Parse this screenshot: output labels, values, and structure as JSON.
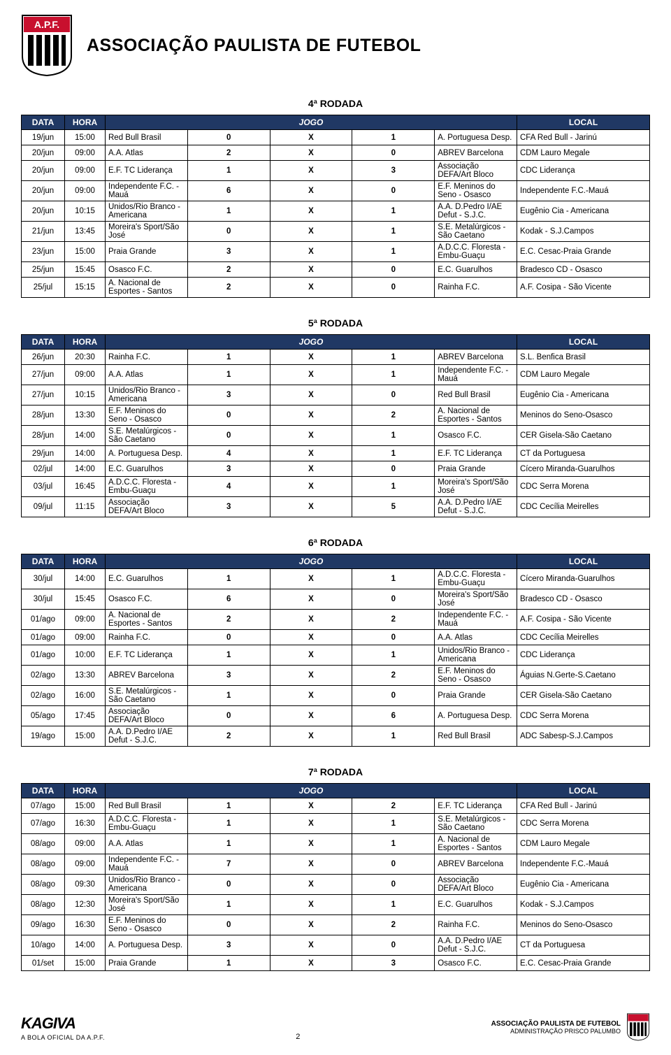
{
  "header": {
    "org_name": "ASSOCIAÇÃO PAULISTA DE FUTEBOL"
  },
  "columns": {
    "data": "DATA",
    "hora": "HORA",
    "jogo": "JOGO",
    "local": "LOCAL"
  },
  "rounds": [
    {
      "title": "4ª RODADA",
      "matches": [
        {
          "data": "19/jun",
          "hora": "15:00",
          "t1": "Red Bull Brasil",
          "s1": "0",
          "x": "X",
          "s2": "1",
          "t2": "A. Portuguesa Desp.",
          "local": "CFA Red Bull - Jarinú"
        },
        {
          "data": "20/jun",
          "hora": "09:00",
          "t1": "A.A. Atlas",
          "s1": "2",
          "x": "X",
          "s2": "0",
          "t2": "ABREV Barcelona",
          "local": "CDM Lauro Megale"
        },
        {
          "data": "20/jun",
          "hora": "09:00",
          "t1": "E.F. TC Liderança",
          "s1": "1",
          "x": "X",
          "s2": "3",
          "t2": "Associação DEFA/Art Bloco",
          "local": "CDC Liderança"
        },
        {
          "data": "20/jun",
          "hora": "09:00",
          "t1": "Independente F.C. - Mauá",
          "s1": "6",
          "x": "X",
          "s2": "0",
          "t2": "E.F. Meninos do Seno - Osasco",
          "local": "Independente F.C.-Mauá"
        },
        {
          "data": "20/jun",
          "hora": "10:15",
          "t1": "Unidos/Rio Branco - Americana",
          "s1": "1",
          "x": "X",
          "s2": "1",
          "t2": "A.A. D.Pedro I/AE Defut - S.J.C.",
          "local": "Eugênio Cia - Americana"
        },
        {
          "data": "21/jun",
          "hora": "13:45",
          "t1": "Moreira's Sport/São José",
          "s1": "0",
          "x": "X",
          "s2": "1",
          "t2": "S.E. Metalúrgicos - São Caetano",
          "local": "Kodak - S.J.Campos"
        },
        {
          "data": "23/jun",
          "hora": "15:00",
          "t1": "Praia Grande",
          "s1": "3",
          "x": "X",
          "s2": "1",
          "t2": "A.D.C.C. Floresta - Embu-Guaçu",
          "local": "E.C. Cesac-Praia Grande"
        },
        {
          "data": "25/jun",
          "hora": "15:45",
          "t1": "Osasco F.C.",
          "s1": "2",
          "x": "X",
          "s2": "0",
          "t2": "E.C. Guarulhos",
          "local": "Bradesco CD - Osasco"
        },
        {
          "data": "25/jul",
          "hora": "15:15",
          "t1": "A. Nacional de Esportes - Santos",
          "s1": "2",
          "x": "X",
          "s2": "0",
          "t2": "Rainha F.C.",
          "local": "A.F. Cosipa - São Vicente"
        }
      ]
    },
    {
      "title": "5ª RODADA",
      "matches": [
        {
          "data": "26/jun",
          "hora": "20:30",
          "t1": "Rainha F.C.",
          "s1": "1",
          "x": "X",
          "s2": "1",
          "t2": "ABREV Barcelona",
          "local": "S.L. Benfica Brasil"
        },
        {
          "data": "27/jun",
          "hora": "09:00",
          "t1": "A.A. Atlas",
          "s1": "1",
          "x": "X",
          "s2": "1",
          "t2": "Independente F.C. - Mauá",
          "local": "CDM Lauro Megale"
        },
        {
          "data": "27/jun",
          "hora": "10:15",
          "t1": "Unidos/Rio Branco - Americana",
          "s1": "3",
          "x": "X",
          "s2": "0",
          "t2": "Red Bull Brasil",
          "local": "Eugênio Cia - Americana"
        },
        {
          "data": "28/jun",
          "hora": "13:30",
          "t1": "E.F. Meninos do Seno - Osasco",
          "s1": "0",
          "x": "X",
          "s2": "2",
          "t2": "A. Nacional de Esportes - Santos",
          "local": "Meninos do Seno-Osasco"
        },
        {
          "data": "28/jun",
          "hora": "14:00",
          "t1": "S.E. Metalúrgicos - São Caetano",
          "s1": "0",
          "x": "X",
          "s2": "1",
          "t2": "Osasco F.C.",
          "local": "CER Gisela-São Caetano"
        },
        {
          "data": "29/jun",
          "hora": "14:00",
          "t1": "A. Portuguesa Desp.",
          "s1": "4",
          "x": "X",
          "s2": "1",
          "t2": "E.F. TC Liderança",
          "local": "CT da Portuguesa"
        },
        {
          "data": "02/jul",
          "hora": "14:00",
          "t1": "E.C. Guarulhos",
          "s1": "3",
          "x": "X",
          "s2": "0",
          "t2": "Praia Grande",
          "local": "Cícero Miranda-Guarulhos"
        },
        {
          "data": "03/jul",
          "hora": "16:45",
          "t1": "A.D.C.C. Floresta - Embu-Guaçu",
          "s1": "4",
          "x": "X",
          "s2": "1",
          "t2": "Moreira's Sport/São José",
          "local": "CDC Serra Morena"
        },
        {
          "data": "09/jul",
          "hora": "11:15",
          "t1": "Associação DEFA/Art Bloco",
          "s1": "3",
          "x": "X",
          "s2": "5",
          "t2": "A.A. D.Pedro I/AE Defut - S.J.C.",
          "local": "CDC Cecília Meirelles"
        }
      ]
    },
    {
      "title": "6ª RODADA",
      "matches": [
        {
          "data": "30/jul",
          "hora": "14:00",
          "t1": "E.C. Guarulhos",
          "s1": "1",
          "x": "X",
          "s2": "1",
          "t2": "A.D.C.C. Floresta - Embu-Guaçu",
          "local": "Cícero Miranda-Guarulhos"
        },
        {
          "data": "30/jul",
          "hora": "15:45",
          "t1": "Osasco F.C.",
          "s1": "6",
          "x": "X",
          "s2": "0",
          "t2": "Moreira's Sport/São José",
          "local": "Bradesco CD - Osasco"
        },
        {
          "data": "01/ago",
          "hora": "09:00",
          "t1": "A. Nacional de Esportes - Santos",
          "s1": "2",
          "x": "X",
          "s2": "2",
          "t2": "Independente F.C. - Mauá",
          "local": "A.F. Cosipa - São Vicente"
        },
        {
          "data": "01/ago",
          "hora": "09:00",
          "t1": "Rainha F.C.",
          "s1": "0",
          "x": "X",
          "s2": "0",
          "t2": "A.A. Atlas",
          "local": "CDC Cecília Meirelles"
        },
        {
          "data": "01/ago",
          "hora": "10:00",
          "t1": "E.F. TC Liderança",
          "s1": "1",
          "x": "X",
          "s2": "1",
          "t2": "Unidos/Rio Branco - Americana",
          "local": "CDC Liderança"
        },
        {
          "data": "02/ago",
          "hora": "13:30",
          "t1": "ABREV Barcelona",
          "s1": "3",
          "x": "X",
          "s2": "2",
          "t2": "E.F. Meninos do Seno - Osasco",
          "local": "Águias N.Gerte-S.Caetano"
        },
        {
          "data": "02/ago",
          "hora": "16:00",
          "t1": "S.E. Metalúrgicos - São Caetano",
          "s1": "1",
          "x": "X",
          "s2": "0",
          "t2": "Praia Grande",
          "local": "CER Gisela-São Caetano"
        },
        {
          "data": "05/ago",
          "hora": "17:45",
          "t1": "Associação DEFA/Art Bloco",
          "s1": "0",
          "x": "X",
          "s2": "6",
          "t2": "A. Portuguesa Desp.",
          "local": "CDC Serra Morena"
        },
        {
          "data": "19/ago",
          "hora": "15:00",
          "t1": "A.A. D.Pedro I/AE Defut - S.J.C.",
          "s1": "2",
          "x": "X",
          "s2": "1",
          "t2": "Red Bull Brasil",
          "local": "ADC Sabesp-S.J.Campos"
        }
      ]
    },
    {
      "title": "7ª RODADA",
      "matches": [
        {
          "data": "07/ago",
          "hora": "15:00",
          "t1": "Red Bull Brasil",
          "s1": "1",
          "x": "X",
          "s2": "2",
          "t2": "E.F. TC Liderança",
          "local": "CFA Red Bull - Jarinú"
        },
        {
          "data": "07/ago",
          "hora": "16:30",
          "t1": "A.D.C.C. Floresta - Embu-Guaçu",
          "s1": "1",
          "x": "X",
          "s2": "1",
          "t2": "S.E. Metalúrgicos - São Caetano",
          "local": "CDC Serra Morena"
        },
        {
          "data": "08/ago",
          "hora": "09:00",
          "t1": "A.A. Atlas",
          "s1": "1",
          "x": "X",
          "s2": "1",
          "t2": "A. Nacional de Esportes - Santos",
          "local": "CDM Lauro Megale"
        },
        {
          "data": "08/ago",
          "hora": "09:00",
          "t1": "Independente F.C. - Mauá",
          "s1": "7",
          "x": "X",
          "s2": "0",
          "t2": "ABREV Barcelona",
          "local": "Independente F.C.-Mauá"
        },
        {
          "data": "08/ago",
          "hora": "09:30",
          "t1": "Unidos/Rio Branco - Americana",
          "s1": "0",
          "x": "X",
          "s2": "0",
          "t2": "Associação DEFA/Art Bloco",
          "local": "Eugênio Cia - Americana"
        },
        {
          "data": "08/ago",
          "hora": "12:30",
          "t1": "Moreira's Sport/São José",
          "s1": "1",
          "x": "X",
          "s2": "1",
          "t2": "E.C. Guarulhos",
          "local": "Kodak - S.J.Campos"
        },
        {
          "data": "09/ago",
          "hora": "16:30",
          "t1": "E.F. Meninos do Seno - Osasco",
          "s1": "0",
          "x": "X",
          "s2": "2",
          "t2": "Rainha F.C.",
          "local": "Meninos do Seno-Osasco"
        },
        {
          "data": "10/ago",
          "hora": "14:00",
          "t1": "A. Portuguesa Desp.",
          "s1": "3",
          "x": "X",
          "s2": "0",
          "t2": "A.A. D.Pedro I/AE Defut - S.J.C.",
          "local": "CT da Portuguesa"
        },
        {
          "data": "01/set",
          "hora": "15:00",
          "t1": "Praia Grande",
          "s1": "1",
          "x": "X",
          "s2": "3",
          "t2": "Osasco F.C.",
          "local": "E.C. Cesac-Praia Grande"
        }
      ]
    }
  ],
  "footer": {
    "sponsor_name": "KAGIVA",
    "sponsor_sub": "A BOLA OFICIAL DA A.P.F.",
    "page_number": "2",
    "org_line1": "ASSOCIAÇÃO PAULISTA DE FUTEBOL",
    "org_line2": "ADMINISTRAÇÃO PRISCO PALUMBO"
  },
  "style": {
    "header_bg": "#203864",
    "header_fg": "#ffffff",
    "border_color": "#000000",
    "page_bg": "#ffffff",
    "font_body": "Verdana, Arial, sans-serif",
    "font_size_body": 12,
    "font_size_title": 25,
    "logo_colors": {
      "shield_red": "#c8102e",
      "bars_black": "#000000",
      "bars_white": "#ffffff"
    }
  }
}
